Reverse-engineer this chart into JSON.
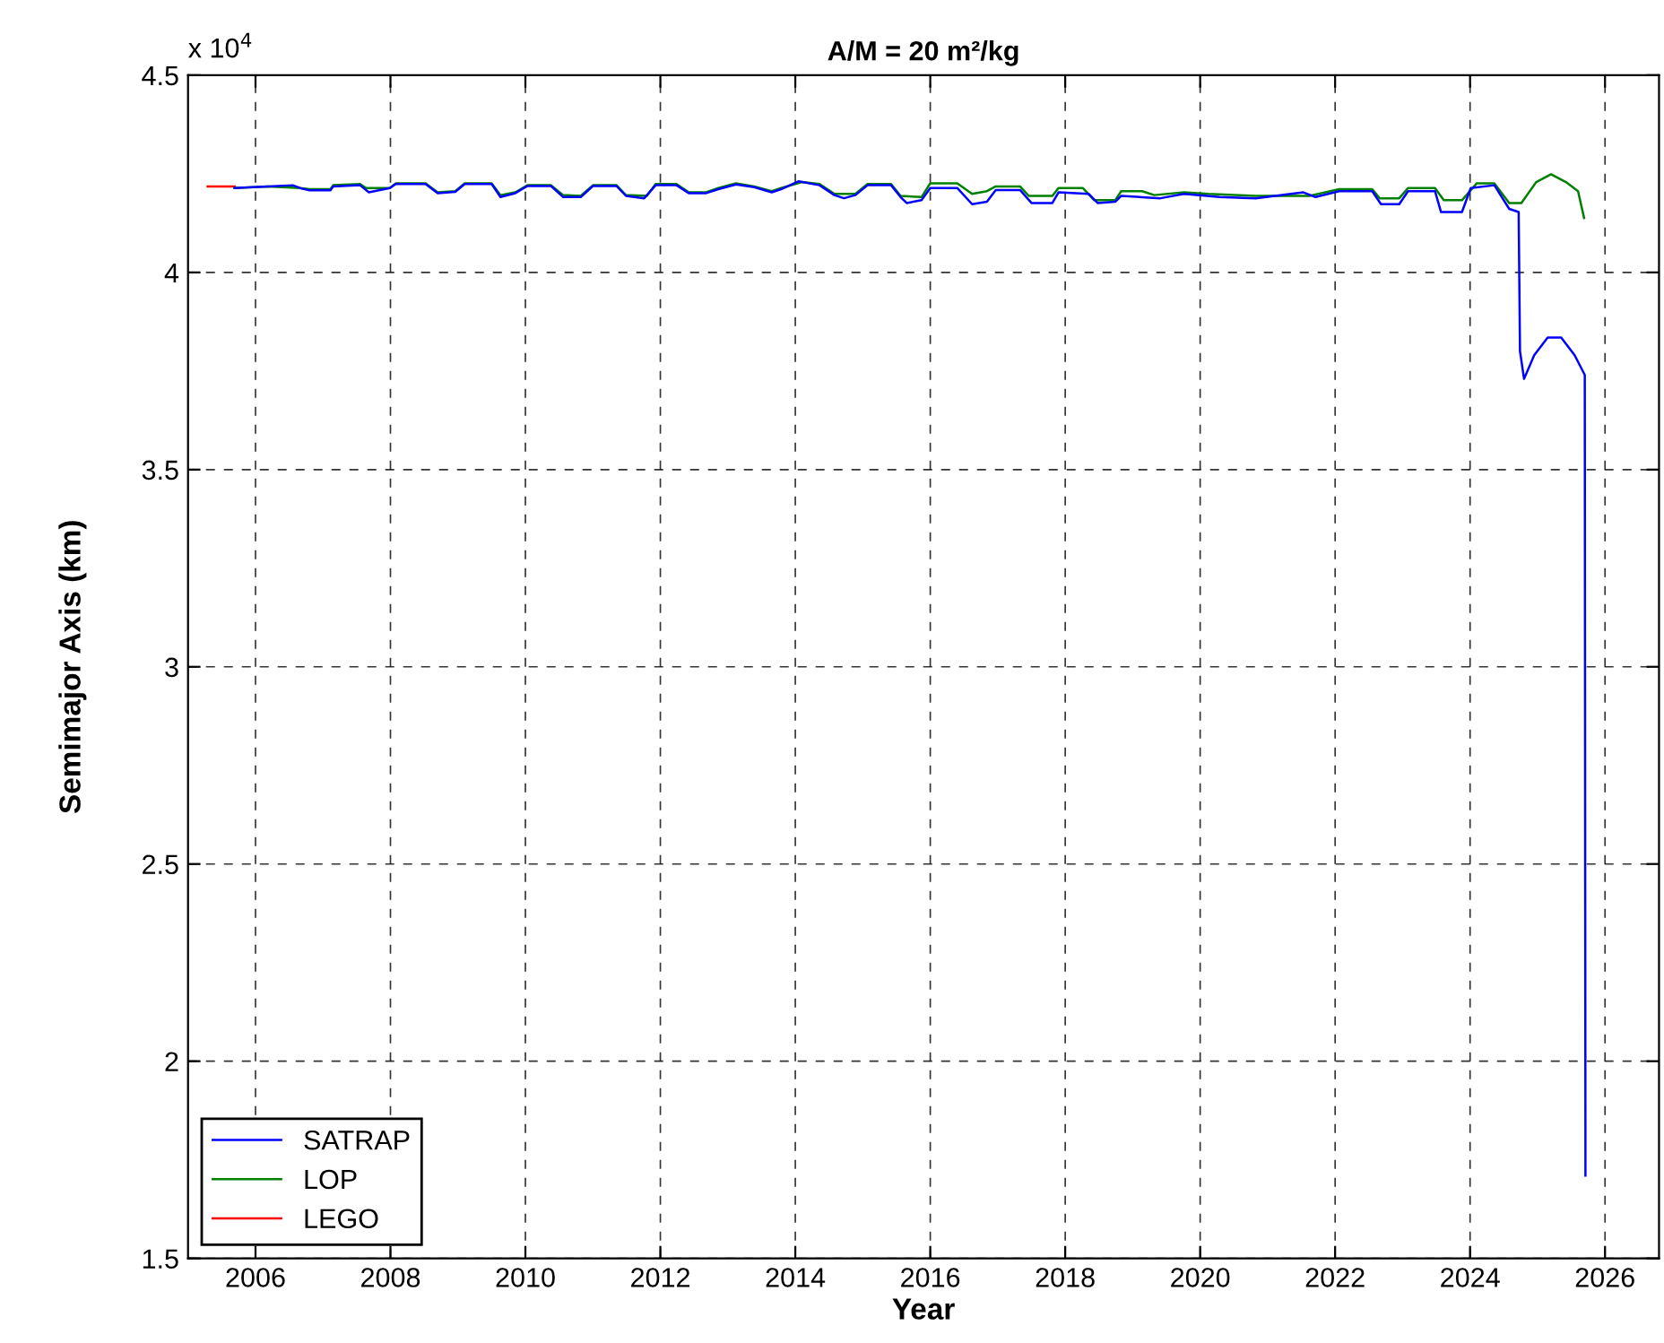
{
  "chart_data": {
    "type": "line",
    "title": "A/M = 20 m²/kg",
    "xlabel": "Year",
    "ylabel": "Semimajor Axis (km)",
    "annotations": [
      "x 10$^{4}$"
    ],
    "xlim": [
      2005,
      2026.8
    ],
    "xticks": [
      2006,
      2008,
      2010,
      2012,
      2014,
      2016,
      2018,
      2020,
      2022,
      2024,
      2026
    ],
    "ylim": [
      1.5,
      4.5
    ],
    "yticks": [
      1.5,
      2,
      2.5,
      3,
      3.5,
      4,
      4.5
    ],
    "grid": true,
    "legend": "lower left",
    "line_style": "solid",
    "marker": "none",
    "series": [
      {
        "name": "SATRAP",
        "color": "#0000ff",
        "x": [
          2005.69,
          2006.18,
          2006.55,
          2006.66,
          2006.8,
          2007.11,
          2007.15,
          2007.55,
          2007.68,
          2007.99,
          2008.08,
          2008.52,
          2008.7,
          2008.96,
          2009.1,
          2009.5,
          2009.63,
          2009.85,
          2010.03,
          2010.38,
          2010.56,
          2010.82,
          2011.0,
          2011.35,
          2011.49,
          2011.76,
          2011.93,
          2012.24,
          2012.42,
          2012.68,
          2012.86,
          2013.12,
          2013.39,
          2013.65,
          2013.79,
          2014.05,
          2014.36,
          2014.58,
          2014.72,
          2014.89,
          2015.07,
          2015.42,
          2015.56,
          2015.65,
          2015.87,
          2016.0,
          2016.4,
          2016.62,
          2016.84,
          2016.97,
          2017.33,
          2017.5,
          2017.81,
          2017.9,
          2018.35,
          2018.48,
          2018.74,
          2018.83,
          2019.41,
          2019.76,
          2020.29,
          2020.82,
          2021.53,
          2021.71,
          2022.06,
          2022.55,
          2022.68,
          2022.95,
          2023.08,
          2023.48,
          2023.57,
          2023.88,
          2024.01,
          2024.36,
          2024.58,
          2024.72,
          2024.74,
          2024.8,
          2024.95,
          2025.15,
          2025.35,
          2025.55,
          2025.7,
          2025.71
        ],
        "values": [
          4.214,
          4.218,
          4.221,
          4.214,
          4.208,
          4.208,
          4.218,
          4.221,
          4.203,
          4.214,
          4.224,
          4.224,
          4.201,
          4.204,
          4.224,
          4.224,
          4.191,
          4.201,
          4.219,
          4.219,
          4.191,
          4.191,
          4.219,
          4.219,
          4.194,
          4.188,
          4.221,
          4.221,
          4.201,
          4.201,
          4.211,
          4.223,
          4.216,
          4.203,
          4.211,
          4.231,
          4.221,
          4.196,
          4.188,
          4.196,
          4.221,
          4.221,
          4.191,
          4.176,
          4.183,
          4.214,
          4.214,
          4.173,
          4.179,
          4.209,
          4.209,
          4.176,
          4.176,
          4.203,
          4.199,
          4.176,
          4.179,
          4.194,
          4.188,
          4.199,
          4.191,
          4.188,
          4.203,
          4.191,
          4.206,
          4.206,
          4.173,
          4.173,
          4.206,
          4.206,
          4.153,
          4.153,
          4.214,
          4.221,
          4.161,
          4.153,
          3.8,
          3.73,
          3.79,
          3.835,
          3.835,
          3.79,
          3.74,
          1.71
        ]
      },
      {
        "name": "LOP",
        "color": "#008000",
        "x": [
          2005.69,
          2006.18,
          2006.66,
          2006.8,
          2007.11,
          2007.15,
          2007.55,
          2007.64,
          2007.99,
          2008.08,
          2008.52,
          2008.7,
          2008.96,
          2009.1,
          2009.5,
          2009.63,
          2009.85,
          2010.03,
          2010.38,
          2010.56,
          2010.82,
          2011.0,
          2011.35,
          2011.49,
          2011.8,
          2011.93,
          2012.24,
          2012.42,
          2012.68,
          2012.86,
          2013.12,
          2013.39,
          2013.65,
          2013.79,
          2014.1,
          2014.36,
          2014.58,
          2014.89,
          2015.07,
          2015.42,
          2015.56,
          2015.87,
          2016.0,
          2016.4,
          2016.62,
          2016.84,
          2016.97,
          2017.33,
          2017.46,
          2017.81,
          2017.9,
          2018.26,
          2018.43,
          2018.74,
          2018.83,
          2019.14,
          2019.32,
          2019.76,
          2020.12,
          2020.82,
          2021.62,
          2022.06,
          2022.55,
          2022.66,
          2022.95,
          2023.08,
          2023.48,
          2023.61,
          2023.88,
          2024.1,
          2024.36,
          2024.58,
          2024.76,
          2024.98,
          2025.2,
          2025.42,
          2025.6,
          2025.69
        ],
        "values": [
          4.214,
          4.218,
          4.214,
          4.211,
          4.211,
          4.221,
          4.224,
          4.214,
          4.214,
          4.226,
          4.226,
          4.203,
          4.206,
          4.226,
          4.226,
          4.196,
          4.203,
          4.221,
          4.221,
          4.196,
          4.194,
          4.221,
          4.221,
          4.196,
          4.194,
          4.224,
          4.224,
          4.203,
          4.203,
          4.214,
          4.226,
          4.218,
          4.206,
          4.214,
          4.229,
          4.224,
          4.199,
          4.199,
          4.224,
          4.224,
          4.194,
          4.191,
          4.226,
          4.226,
          4.199,
          4.206,
          4.218,
          4.218,
          4.194,
          4.194,
          4.214,
          4.214,
          4.183,
          4.183,
          4.206,
          4.206,
          4.196,
          4.203,
          4.199,
          4.194,
          4.194,
          4.211,
          4.211,
          4.188,
          4.188,
          4.214,
          4.214,
          4.183,
          4.183,
          4.226,
          4.226,
          4.176,
          4.176,
          4.229,
          4.249,
          4.229,
          4.206,
          4.138
        ]
      },
      {
        "name": "LEGO",
        "color": "#ff0000",
        "x": [
          2005.29,
          2005.69
        ],
        "values": [
          4.218,
          4.218
        ]
      }
    ]
  }
}
